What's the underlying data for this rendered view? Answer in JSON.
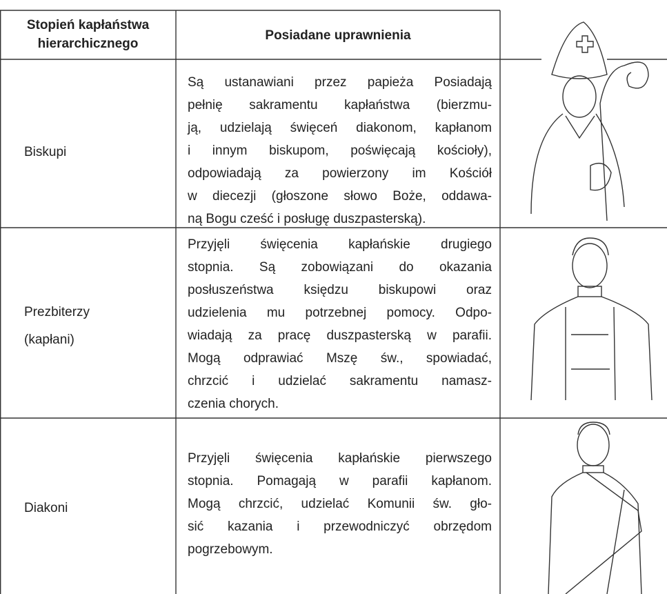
{
  "table": {
    "header": {
      "rank_lines": [
        "Stopień kapłaństwa",
        "hierarchicznego"
      ],
      "powers": "Posiadane uprawnienia"
    },
    "rows": [
      {
        "rank_lines": [
          "Biskupi"
        ],
        "description_lines": [
          "Są ustanawiani przez papieża Posiadają",
          "pełnię sakramentu kapłaństwa (bierzmu-",
          "ją, udzielają święceń diakonom, kapłanom",
          "i innym biskupom, poświęcają kościoły),",
          "odpowiadają za powierzony im Kościół",
          "w diecezji (głoszone słowo Boże, oddawa-",
          "ną Bogu cześć i posługę duszpasterską)."
        ]
      },
      {
        "rank_lines": [
          "Prezbiterzy",
          "(kapłani)"
        ],
        "description_lines": [
          "Przyjęli święcenia kapłańskie drugiego",
          "stopnia. Są zobowiązani do okazania",
          "posłuszeństwa księdzu biskupowi oraz",
          "udzielenia mu potrzebnej pomocy. Odpo-",
          "wiadają za pracę duszpasterską w parafii.",
          "Mogą odprawiać Mszę św., spowiadać,",
          "chrzcić i udzielać sakramentu namasz-",
          "czenia chorych."
        ]
      },
      {
        "rank_lines": [
          "Diakoni"
        ],
        "description_lines": [
          "Przyjęli święcenia kapłańskie pierwszego",
          "stopnia. Pomagają w parafii kapłanom.",
          "Mogą chrzcić, udzielać Komunii św. gło-",
          "sić kazania i przewodniczyć obrzędom",
          "pogrzebowym."
        ]
      }
    ]
  }
}
